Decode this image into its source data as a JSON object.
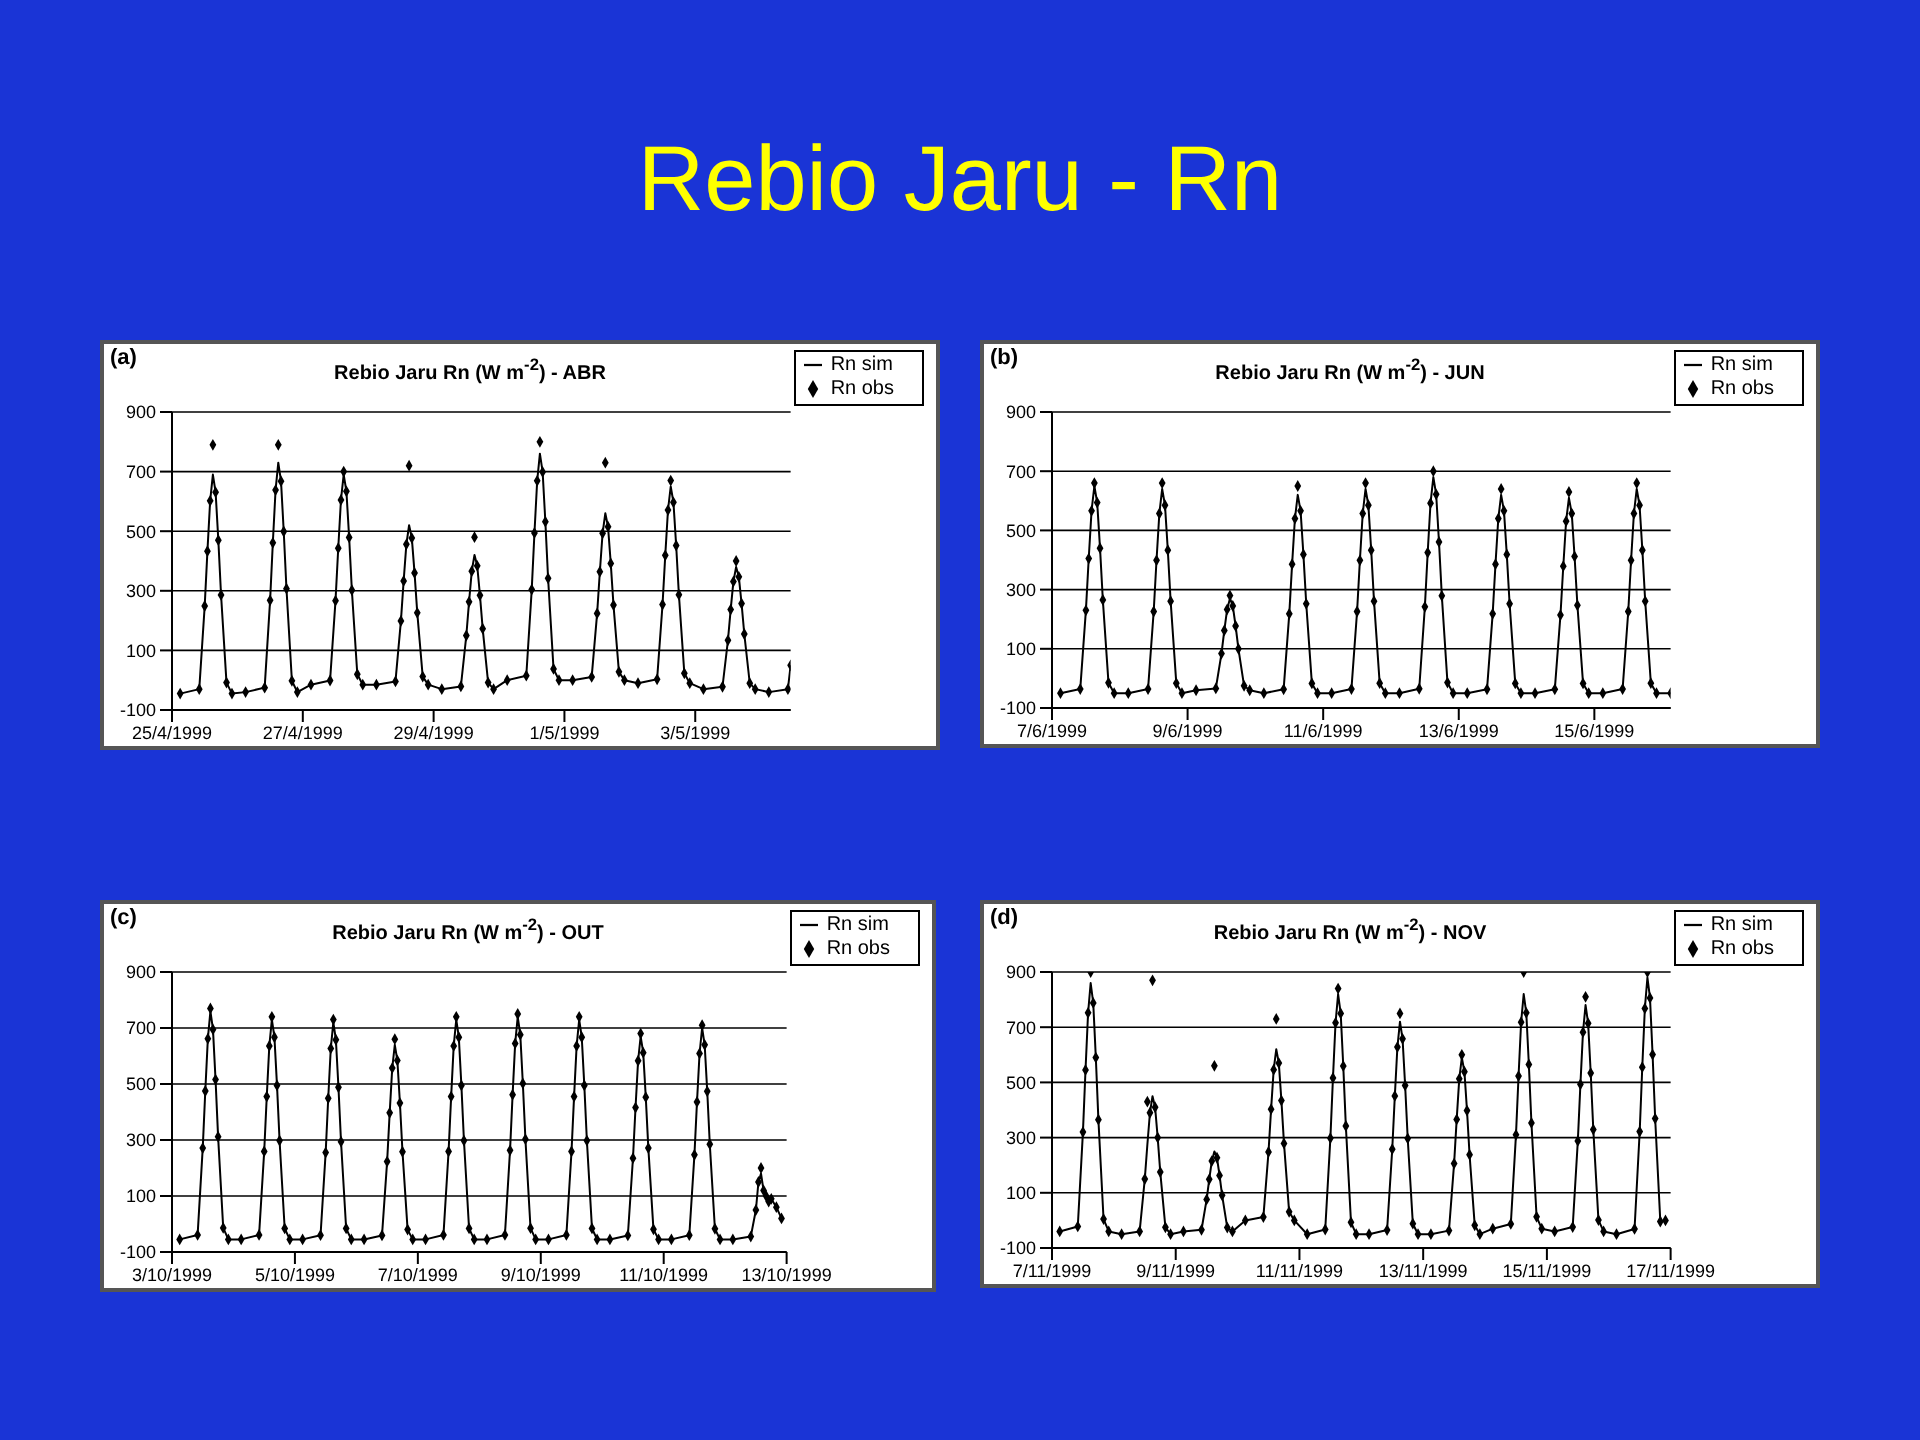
{
  "chart_data": [
    {
      "type": "other",
      "title": "Rebio Jaru - Rn"
    },
    {
      "type": "line",
      "title": "Rebio Jaru Rn (W m$^{-2}$) - ABR",
      "annotations": [
        "(a)"
      ],
      "legend": "top right",
      "grid": "y",
      "x": [
        "1999-04-25T03:00",
        "1999-04-25T10:00",
        "1999-04-25T12:00",
        "1999-04-25T13:00",
        "1999-04-25T14:00",
        "1999-04-25T15:00",
        "1999-04-25T16:00",
        "1999-04-25T17:00",
        "1999-04-25T18:00",
        "1999-04-25T20:00",
        "1999-04-25T22:00",
        "1999-04-26T03:00",
        "1999-04-26T10:00",
        "1999-04-26T12:00",
        "1999-04-26T13:00",
        "1999-04-26T14:00",
        "1999-04-26T15:00",
        "1999-04-26T16:00",
        "1999-04-26T17:00",
        "1999-04-26T18:00",
        "1999-04-26T20:00",
        "1999-04-26T22:00",
        "1999-04-27T03:00",
        "1999-04-27T10:00",
        "1999-04-27T12:00",
        "1999-04-27T13:00",
        "1999-04-27T14:00",
        "1999-04-27T15:00",
        "1999-04-27T16:00",
        "1999-04-27T17:00",
        "1999-04-27T18:00",
        "1999-04-27T20:00",
        "1999-04-27T22:00",
        "1999-04-28T03:00",
        "1999-04-28T10:00",
        "1999-04-28T12:00",
        "1999-04-28T13:00",
        "1999-04-28T14:00",
        "1999-04-28T15:00",
        "1999-04-28T16:00",
        "1999-04-28T17:00",
        "1999-04-28T18:00",
        "1999-04-28T20:00",
        "1999-04-28T22:00",
        "1999-04-29T03:00",
        "1999-04-29T10:00",
        "1999-04-29T12:00",
        "1999-04-29T13:00",
        "1999-04-29T14:00",
        "1999-04-29T15:00",
        "1999-04-29T16:00",
        "1999-04-29T17:00",
        "1999-04-29T18:00",
        "1999-04-29T20:00",
        "1999-04-29T22:00",
        "1999-04-30T03:00",
        "1999-04-30T10:00",
        "1999-04-30T12:00",
        "1999-04-30T13:00",
        "1999-04-30T14:00",
        "1999-04-30T15:00",
        "1999-04-30T16:00",
        "1999-04-30T17:00",
        "1999-04-30T18:00",
        "1999-04-30T20:00",
        "1999-04-30T22:00",
        "1999-05-01T03:00",
        "1999-05-01T10:00",
        "1999-05-01T12:00",
        "1999-05-01T13:00",
        "1999-05-01T14:00",
        "1999-05-01T15:00",
        "1999-05-01T16:00",
        "1999-05-01T17:00",
        "1999-05-01T18:00",
        "1999-05-01T20:00",
        "1999-05-01T22:00",
        "1999-05-02T03:00",
        "1999-05-02T10:00",
        "1999-05-02T12:00",
        "1999-05-02T13:00",
        "1999-05-02T14:00",
        "1999-05-02T15:00",
        "1999-05-02T16:00",
        "1999-05-02T17:00",
        "1999-05-02T18:00",
        "1999-05-02T20:00",
        "1999-05-02T22:00",
        "1999-05-03T03:00",
        "1999-05-03T10:00",
        "1999-05-03T12:00",
        "1999-05-03T13:00",
        "1999-05-03T14:00",
        "1999-05-03T15:00",
        "1999-05-03T16:00",
        "1999-05-03T17:00",
        "1999-05-03T18:00",
        "1999-05-03T20:00",
        "1999-05-03T22:00",
        "1999-05-04T03:00",
        "1999-05-04T10:00",
        "1999-05-04T11:00"
      ],
      "series": [
        {
          "name": "Rn sim",
          "type": "line",
          "color": "#000000",
          "marker": "none",
          "values": [
            -45,
            -30,
            249,
            433,
            602,
            690,
            631,
            470,
            286,
            -8,
            -45,
            -40,
            -25,
            268,
            461,
            638,
            730,
            668,
            499,
            307,
            -2,
            -40,
            -15,
            -1,
            267,
            443,
            605,
            690,
            634,
            479,
            302,
            20,
            -15,
            -15,
            -4,
            199,
            333,
            456,
            520,
            477,
            360,
            226,
            12,
            -15,
            -30,
            -21,
            150,
            263,
            366,
            420,
            384,
            285,
            173,
            -8,
            -30,
            0,
            15,
            304,
            494,
            669,
            760,
            699,
            532,
            342,
            38,
            0,
            0,
            11,
            224,
            364,
            493,
            560,
            515,
            392,
            252,
            28,
            0,
            -10,
            3,
            254,
            419,
            571,
            650,
            597,
            452,
            287,
            23,
            -10,
            -30,
            -22,
            134,
            237,
            331,
            380,
            347,
            257,
            155,
            -10,
            -30,
            -40,
            -30,
            50
          ]
        },
        {
          "name": "Rn obs",
          "type": "scatter",
          "color": "#000000",
          "marker": "diamond",
          "values": [
            -45,
            -30,
            249,
            433,
            602,
            790,
            631,
            470,
            286,
            -8,
            -45,
            -40,
            -25,
            268,
            461,
            638,
            790,
            668,
            499,
            307,
            -2,
            -40,
            -15,
            -1,
            267,
            443,
            605,
            700,
            634,
            479,
            302,
            20,
            -15,
            -15,
            -4,
            199,
            333,
            456,
            720,
            477,
            360,
            226,
            12,
            -15,
            -30,
            -21,
            150,
            263,
            366,
            480,
            384,
            285,
            173,
            -8,
            -30,
            0,
            15,
            304,
            494,
            669,
            800,
            699,
            532,
            342,
            38,
            0,
            0,
            11,
            224,
            364,
            493,
            730,
            515,
            392,
            252,
            28,
            0,
            -10,
            3,
            254,
            419,
            571,
            670,
            597,
            452,
            287,
            23,
            -10,
            -30,
            -22,
            134,
            237,
            331,
            400,
            347,
            257,
            155,
            -10,
            -30,
            -40,
            -30,
            50
          ]
        }
      ],
      "xlim": [
        "1999-04-25",
        "1999-05-04T11:00"
      ],
      "xticks": [
        {
          "value": "1999-04-25",
          "label": "25/4/1999"
        },
        {
          "value": "1999-04-27",
          "label": "27/4/1999"
        },
        {
          "value": "1999-04-29",
          "label": "29/4/1999"
        },
        {
          "value": "1999-05-01",
          "label": "1/5/1999"
        },
        {
          "value": "1999-05-03",
          "label": "3/5/1999"
        }
      ],
      "ylim": [
        -100,
        900
      ],
      "yticks": [
        -100,
        100,
        300,
        500,
        700,
        900
      ]
    },
    {
      "type": "line",
      "title": "Rebio Jaru Rn (W m$^{-2}$) - JUN",
      "annotations": [
        "(b)"
      ],
      "legend": "top right",
      "grid": "y",
      "x": [
        "1999-06-07T03:00",
        "1999-06-07T10:00",
        "1999-06-07T12:00",
        "1999-06-07T13:00",
        "1999-06-07T14:00",
        "1999-06-07T15:00",
        "1999-06-07T16:00",
        "1999-06-07T17:00",
        "1999-06-07T18:00",
        "1999-06-07T20:00",
        "1999-06-07T22:00",
        "1999-06-08T03:00",
        "1999-06-08T10:00",
        "1999-06-08T12:00",
        "1999-06-08T13:00",
        "1999-06-08T14:00",
        "1999-06-08T15:00",
        "1999-06-08T16:00",
        "1999-06-08T17:00",
        "1999-06-08T18:00",
        "1999-06-08T20:00",
        "1999-06-08T22:00",
        "1999-06-09T03:00",
        "1999-06-09T10:00",
        "1999-06-09T12:00",
        "1999-06-09T13:00",
        "1999-06-09T14:00",
        "1999-06-09T15:00",
        "1999-06-09T16:00",
        "1999-06-09T17:00",
        "1999-06-09T18:00",
        "1999-06-09T20:00",
        "1999-06-09T22:00",
        "1999-06-10T03:00",
        "1999-06-10T10:00",
        "1999-06-10T12:00",
        "1999-06-10T13:00",
        "1999-06-10T14:00",
        "1999-06-10T15:00",
        "1999-06-10T16:00",
        "1999-06-10T17:00",
        "1999-06-10T18:00",
        "1999-06-10T20:00",
        "1999-06-10T22:00",
        "1999-06-11T03:00",
        "1999-06-11T10:00",
        "1999-06-11T12:00",
        "1999-06-11T13:00",
        "1999-06-11T14:00",
        "1999-06-11T15:00",
        "1999-06-11T16:00",
        "1999-06-11T17:00",
        "1999-06-11T18:00",
        "1999-06-11T20:00",
        "1999-06-11T22:00",
        "1999-06-12T03:00",
        "1999-06-12T10:00",
        "1999-06-12T12:00",
        "1999-06-12T13:00",
        "1999-06-12T14:00",
        "1999-06-12T15:00",
        "1999-06-12T16:00",
        "1999-06-12T17:00",
        "1999-06-12T18:00",
        "1999-06-12T20:00",
        "1999-06-12T22:00",
        "1999-06-13T03:00",
        "1999-06-13T10:00",
        "1999-06-13T12:00",
        "1999-06-13T13:00",
        "1999-06-13T14:00",
        "1999-06-13T15:00",
        "1999-06-13T16:00",
        "1999-06-13T17:00",
        "1999-06-13T18:00",
        "1999-06-13T20:00",
        "1999-06-13T22:00",
        "1999-06-14T03:00",
        "1999-06-14T10:00",
        "1999-06-14T12:00",
        "1999-06-14T13:00",
        "1999-06-14T14:00",
        "1999-06-14T15:00",
        "1999-06-14T16:00",
        "1999-06-14T17:00",
        "1999-06-14T18:00",
        "1999-06-14T20:00",
        "1999-06-14T22:00",
        "1999-06-15T03:00",
        "1999-06-15T10:00",
        "1999-06-15T12:00",
        "1999-06-15T13:00",
        "1999-06-15T14:00",
        "1999-06-15T15:00",
        "1999-06-15T16:00",
        "1999-06-15T17:00",
        "1999-06-15T18:00",
        "1999-06-15T20:00",
        "1999-06-15T22:00",
        "1999-06-16T03:00"
      ],
      "series": [
        {
          "name": "Rn sim",
          "type": "line",
          "color": "#000000",
          "marker": "none",
          "values": [
            -50,
            -36,
            230,
            405,
            566,
            650,
            594,
            440,
            265,
            -15,
            -50,
            -50,
            -36,
            226,
            399,
            557,
            640,
            585,
            433,
            261,
            -16,
            -50,
            -40,
            -34,
            84,
            162,
            233,
            270,
            245,
            177,
            100,
            -25,
            -40,
            -50,
            -37,
            218,
            386,
            540,
            620,
            566,
            419,
            252,
            -17,
            -50,
            -50,
            -36,
            226,
            399,
            557,
            640,
            585,
            433,
            261,
            -16,
            -50,
            -50,
            -35,
            242,
            425,
            592,
            680,
            622,
            461,
            279,
            -14,
            -50,
            -50,
            -37,
            218,
            386,
            540,
            620,
            566,
            419,
            252,
            -17,
            -50,
            -50,
            -37,
            214,
            379,
            531,
            610,
            557,
            412,
            247,
            -17,
            -50,
            -50,
            -36,
            226,
            399,
            557,
            640,
            585,
            433,
            261,
            -16,
            -50,
            -50
          ]
        },
        {
          "name": "Rn obs",
          "type": "scatter",
          "color": "#000000",
          "marker": "diamond",
          "values": [
            -50,
            -36,
            230,
            405,
            566,
            660,
            594,
            440,
            265,
            -15,
            -50,
            -50,
            -36,
            226,
            399,
            557,
            660,
            585,
            433,
            261,
            -16,
            -50,
            -40,
            -34,
            84,
            162,
            233,
            280,
            245,
            177,
            100,
            -25,
            -40,
            -50,
            -37,
            218,
            386,
            540,
            650,
            566,
            419,
            252,
            -17,
            -50,
            -50,
            -36,
            226,
            399,
            557,
            660,
            585,
            433,
            261,
            -16,
            -50,
            -50,
            -35,
            242,
            425,
            592,
            700,
            622,
            461,
            279,
            -14,
            -50,
            -50,
            -37,
            218,
            386,
            540,
            640,
            566,
            419,
            252,
            -17,
            -50,
            -50,
            -37,
            214,
            379,
            531,
            630,
            557,
            412,
            247,
            -17,
            -50,
            -50,
            -36,
            226,
            399,
            557,
            660,
            585,
            433,
            261,
            -16,
            -50,
            -50
          ]
        }
      ],
      "xlim": [
        "1999-06-07",
        "1999-06-16T03:00"
      ],
      "xticks": [
        {
          "value": "1999-06-07",
          "label": "7/6/1999"
        },
        {
          "value": "1999-06-09",
          "label": "9/6/1999"
        },
        {
          "value": "1999-06-11",
          "label": "11/6/1999"
        },
        {
          "value": "1999-06-13",
          "label": "13/6/1999"
        },
        {
          "value": "1999-06-15",
          "label": "15/6/1999"
        }
      ],
      "ylim": [
        -100,
        900
      ],
      "yticks": [
        -100,
        100,
        300,
        500,
        700,
        900
      ]
    },
    {
      "type": "line",
      "title": "Rebio Jaru Rn (W m$^{-2}$) - OUT",
      "annotations": [
        "(c)"
      ],
      "legend": "top right",
      "grid": "y",
      "x": [
        "1999-10-03T03:00",
        "1999-10-03T10:00",
        "1999-10-03T12:00",
        "1999-10-03T13:00",
        "1999-10-03T14:00",
        "1999-10-03T15:00",
        "1999-10-03T16:00",
        "1999-10-03T17:00",
        "1999-10-03T18:00",
        "1999-10-03T20:00",
        "1999-10-03T22:00",
        "1999-10-04T03:00",
        "1999-10-04T10:00",
        "1999-10-04T12:00",
        "1999-10-04T13:00",
        "1999-10-04T14:00",
        "1999-10-04T15:00",
        "1999-10-04T16:00",
        "1999-10-04T17:00",
        "1999-10-04T18:00",
        "1999-10-04T20:00",
        "1999-10-04T22:00",
        "1999-10-05T03:00",
        "1999-10-05T10:00",
        "1999-10-05T12:00",
        "1999-10-05T13:00",
        "1999-10-05T14:00",
        "1999-10-05T15:00",
        "1999-10-05T16:00",
        "1999-10-05T17:00",
        "1999-10-05T18:00",
        "1999-10-05T20:00",
        "1999-10-05T22:00",
        "1999-10-06T03:00",
        "1999-10-06T10:00",
        "1999-10-06T12:00",
        "1999-10-06T13:00",
        "1999-10-06T14:00",
        "1999-10-06T15:00",
        "1999-10-06T16:00",
        "1999-10-06T17:00",
        "1999-10-06T18:00",
        "1999-10-06T20:00",
        "1999-10-06T22:00",
        "1999-10-07T03:00",
        "1999-10-07T10:00",
        "1999-10-07T12:00",
        "1999-10-07T13:00",
        "1999-10-07T14:00",
        "1999-10-07T15:00",
        "1999-10-07T16:00",
        "1999-10-07T17:00",
        "1999-10-07T18:00",
        "1999-10-07T20:00",
        "1999-10-07T22:00",
        "1999-10-08T03:00",
        "1999-10-08T10:00",
        "1999-10-08T12:00",
        "1999-10-08T13:00",
        "1999-10-08T14:00",
        "1999-10-08T15:00",
        "1999-10-08T16:00",
        "1999-10-08T17:00",
        "1999-10-08T18:00",
        "1999-10-08T20:00",
        "1999-10-08T22:00",
        "1999-10-09T03:00",
        "1999-10-09T10:00",
        "1999-10-09T12:00",
        "1999-10-09T13:00",
        "1999-10-09T14:00",
        "1999-10-09T15:00",
        "1999-10-09T16:00",
        "1999-10-09T17:00",
        "1999-10-09T18:00",
        "1999-10-09T20:00",
        "1999-10-09T22:00",
        "1999-10-10T03:00",
        "1999-10-10T10:00",
        "1999-10-10T12:00",
        "1999-10-10T13:00",
        "1999-10-10T14:00",
        "1999-10-10T15:00",
        "1999-10-10T16:00",
        "1999-10-10T17:00",
        "1999-10-10T18:00",
        "1999-10-10T20:00",
        "1999-10-10T22:00",
        "1999-10-11T03:00",
        "1999-10-11T10:00",
        "1999-10-11T12:00",
        "1999-10-11T13:00",
        "1999-10-11T14:00",
        "1999-10-11T15:00",
        "1999-10-11T16:00",
        "1999-10-11T17:00",
        "1999-10-11T18:00",
        "1999-10-11T20:00",
        "1999-10-11T22:00",
        "1999-10-12T03:00",
        "1999-10-12T10:00",
        "1999-10-12T12:00",
        "1999-10-12T13:00",
        "1999-10-12T14:00",
        "1999-10-12T15:00",
        "1999-10-12T16:00",
        "1999-10-12T17:00",
        "1999-10-12T18:00",
        "1999-10-12T20:00",
        "1999-10-12T22:00"
      ],
      "series": [
        {
          "name": "Rn sim",
          "type": "line",
          "color": "#000000",
          "marker": "none",
          "values": [
            -55,
            -39,
            271,
            475,
            662,
            760,
            695,
            516,
            312,
            -14,
            -55,
            -55,
            -39,
            259,
            455,
            636,
            730,
            667,
            495,
            298,
            -16,
            -55,
            -55,
            -40,
            255,
            449,
            627,
            720,
            658,
            488,
            294,
            -16,
            -55,
            -55,
            -41,
            223,
            397,
            557,
            640,
            584,
            432,
            258,
            -20,
            -55,
            -55,
            -39,
            259,
            455,
            636,
            730,
            667,
            495,
            298,
            -16,
            -55,
            -55,
            -39,
            263,
            462,
            645,
            740,
            676,
            502,
            303,
            -15,
            -55,
            -55,
            -39,
            259,
            455,
            636,
            730,
            667,
            495,
            298,
            -16,
            -55,
            -55,
            -41,
            235,
            416,
            583,
            670,
            612,
            453,
            271,
            -19,
            -55,
            -55,
            -40,
            247,
            436,
            609,
            700,
            640,
            474,
            285,
            -17,
            -55,
            -55,
            -45,
            50,
            150,
            180,
            120,
            100,
            80,
            90,
            60,
            20
          ]
        },
        {
          "name": "Rn obs",
          "type": "scatter",
          "color": "#000000",
          "marker": "diamond",
          "values": [
            -55,
            -39,
            271,
            475,
            662,
            770,
            695,
            516,
            312,
            -14,
            -55,
            -55,
            -39,
            259,
            455,
            636,
            740,
            667,
            495,
            298,
            -16,
            -55,
            -55,
            -40,
            255,
            449,
            627,
            730,
            658,
            488,
            294,
            -16,
            -55,
            -55,
            -41,
            223,
            397,
            557,
            660,
            584,
            432,
            258,
            -20,
            -55,
            -55,
            -39,
            259,
            455,
            636,
            740,
            667,
            495,
            298,
            -16,
            -55,
            -55,
            -39,
            263,
            462,
            645,
            750,
            676,
            502,
            303,
            -15,
            -55,
            -55,
            -39,
            259,
            455,
            636,
            740,
            667,
            495,
            298,
            -16,
            -55,
            -55,
            -41,
            235,
            416,
            583,
            680,
            612,
            453,
            271,
            -19,
            -55,
            -55,
            -40,
            247,
            436,
            609,
            710,
            640,
            474,
            285,
            -17,
            -55,
            -55,
            -45,
            50,
            150,
            200,
            120,
            100,
            80,
            90,
            60,
            20
          ]
        }
      ],
      "xlim": [
        "1999-10-03",
        "1999-10-13"
      ],
      "xticks": [
        {
          "value": "1999-10-03",
          "label": "3/10/1999"
        },
        {
          "value": "1999-10-05",
          "label": "5/10/1999"
        },
        {
          "value": "1999-10-07",
          "label": "7/10/1999"
        },
        {
          "value": "1999-10-09",
          "label": "9/10/1999"
        },
        {
          "value": "1999-10-11",
          "label": "11/10/1999"
        },
        {
          "value": "1999-10-13",
          "label": "13/10/1999"
        }
      ],
      "ylim": [
        -100,
        900
      ],
      "yticks": [
        -100,
        100,
        300,
        500,
        700,
        900
      ]
    },
    {
      "type": "line",
      "title": "Rebio Jaru Rn (W m$^{-2}$) - NOV",
      "annotations": [
        "(d)"
      ],
      "legend": "top right",
      "grid": "y",
      "x": [
        "1999-11-07T03:00",
        "1999-11-07T10:00",
        "1999-11-07T12:00",
        "1999-11-07T13:00",
        "1999-11-07T14:00",
        "1999-11-07T15:00",
        "1999-11-07T16:00",
        "1999-11-07T17:00",
        "1999-11-07T18:00",
        "1999-11-07T20:00",
        "1999-11-07T22:00",
        "1999-11-08T03:00",
        "1999-11-08T10:00",
        "1999-11-08T12:00",
        "1999-11-08T13:00",
        "1999-11-08T14:00",
        "1999-11-08T15:00",
        "1999-11-08T16:00",
        "1999-11-08T17:00",
        "1999-11-08T18:00",
        "1999-11-08T20:00",
        "1999-11-08T22:00",
        "1999-11-09T03:00",
        "1999-11-09T10:00",
        "1999-11-09T12:00",
        "1999-11-09T13:00",
        "1999-11-09T14:00",
        "1999-11-09T15:00",
        "1999-11-09T16:00",
        "1999-11-09T17:00",
        "1999-11-09T18:00",
        "1999-11-09T20:00",
        "1999-11-09T22:00",
        "1999-11-10T03:00",
        "1999-11-10T10:00",
        "1999-11-10T12:00",
        "1999-11-10T13:00",
        "1999-11-10T14:00",
        "1999-11-10T15:00",
        "1999-11-10T16:00",
        "1999-11-10T17:00",
        "1999-11-10T18:00",
        "1999-11-10T20:00",
        "1999-11-10T22:00",
        "1999-11-11T03:00",
        "1999-11-11T10:00",
        "1999-11-11T12:00",
        "1999-11-11T13:00",
        "1999-11-11T14:00",
        "1999-11-11T15:00",
        "1999-11-11T16:00",
        "1999-11-11T17:00",
        "1999-11-11T18:00",
        "1999-11-11T20:00",
        "1999-11-11T22:00",
        "1999-11-12T03:00",
        "1999-11-12T10:00",
        "1999-11-12T12:00",
        "1999-11-12T13:00",
        "1999-11-12T14:00",
        "1999-11-12T15:00",
        "1999-11-12T16:00",
        "1999-11-12T17:00",
        "1999-11-12T18:00",
        "1999-11-12T20:00",
        "1999-11-12T22:00",
        "1999-11-13T03:00",
        "1999-11-13T10:00",
        "1999-11-13T12:00",
        "1999-11-13T13:00",
        "1999-11-13T14:00",
        "1999-11-13T15:00",
        "1999-11-13T16:00",
        "1999-11-13T17:00",
        "1999-11-13T18:00",
        "1999-11-13T20:00",
        "1999-11-13T22:00",
        "1999-11-14T03:00",
        "1999-11-14T10:00",
        "1999-11-14T12:00",
        "1999-11-14T13:00",
        "1999-11-14T14:00",
        "1999-11-14T15:00",
        "1999-11-14T16:00",
        "1999-11-14T17:00",
        "1999-11-14T18:00",
        "1999-11-14T20:00",
        "1999-11-14T22:00",
        "1999-11-15T03:00",
        "1999-11-15T10:00",
        "1999-11-15T12:00",
        "1999-11-15T13:00",
        "1999-11-15T14:00",
        "1999-11-15T15:00",
        "1999-11-15T16:00",
        "1999-11-15T17:00",
        "1999-11-15T18:00",
        "1999-11-15T20:00",
        "1999-11-15T22:00",
        "1999-11-16T03:00",
        "1999-11-16T10:00",
        "1999-11-16T12:00",
        "1999-11-16T13:00",
        "1999-11-16T14:00",
        "1999-11-16T15:00",
        "1999-11-16T16:00",
        "1999-11-16T17:00",
        "1999-11-16T18:00",
        "1999-11-16T20:00",
        "1999-11-16T22:00"
      ],
      "series": [
        {
          "name": "Rn sim",
          "type": "line",
          "color": "#000000",
          "marker": "none",
          "values": [
            -40,
            -22,
            320,
            545,
            752,
            860,
            788,
            590,
            365,
            5,
            -40,
            -50,
            -40,
            150,
            275,
            390,
            450,
            410,
            300,
            175,
            -25,
            -50,
            -40,
            -34,
            76,
            149,
            215,
            250,
            227,
            163,
            91,
            -26,
            -40,
            0,
            12,
            248,
            403,
            546,
            620,
            570,
            434,
            279,
            31,
            0,
            -50,
            -33,
            298,
            516,
            716,
            820,
            750,
            559,
            342,
            -7,
            -50,
            -50,
            -35,
            258,
            451,
            628,
            720,
            658,
            489,
            297,
            -12,
            -50,
            -50,
            -37,
            206,
            366,
            513,
            590,
            539,
            398,
            238,
            -18,
            -50,
            -30,
            -13,
            310,
            523,
            718,
            820,
            752,
            565,
            353,
            13,
            -30,
            -40,
            -24,
            288,
            493,
            682,
            780,
            714,
            534,
            329,
            1,
            -40,
            -50,
            -31,
            322,
            555,
            768,
            880,
            806,
            601,
            369,
            -4,
            0
          ]
        },
        {
          "name": "Rn obs",
          "type": "scatter",
          "color": "#000000",
          "marker": "diamond",
          "values": [
            -40,
            -22,
            320,
            545,
            752,
            900,
            788,
            590,
            365,
            5,
            -40,
            -50,
            -40,
            150,
            430,
            390,
            870,
            410,
            300,
            175,
            -25,
            -50,
            -40,
            -34,
            76,
            149,
            215,
            560,
            227,
            163,
            91,
            -26,
            -40,
            0,
            12,
            248,
            403,
            546,
            730,
            570,
            434,
            279,
            31,
            0,
            -50,
            -33,
            298,
            516,
            716,
            840,
            750,
            559,
            342,
            -7,
            -50,
            -50,
            -35,
            258,
            451,
            628,
            750,
            658,
            489,
            297,
            -12,
            -50,
            -50,
            -37,
            206,
            366,
            513,
            600,
            539,
            398,
            238,
            -18,
            -50,
            -30,
            -13,
            310,
            523,
            718,
            900,
            752,
            565,
            353,
            13,
            -30,
            -40,
            -24,
            288,
            493,
            682,
            810,
            714,
            534,
            329,
            1,
            -40,
            -50,
            -31,
            322,
            555,
            768,
            900,
            806,
            601,
            369,
            -4,
            0
          ]
        }
      ],
      "xlim": [
        "1999-11-07",
        "1999-11-17"
      ],
      "xticks": [
        {
          "value": "1999-11-07",
          "label": "7/11/1999"
        },
        {
          "value": "1999-11-09",
          "label": "9/11/1999"
        },
        {
          "value": "1999-11-11",
          "label": "11/11/1999"
        },
        {
          "value": "1999-11-13",
          "label": "13/11/1999"
        },
        {
          "value": "1999-11-15",
          "label": "15/11/1999"
        },
        {
          "value": "1999-11-17",
          "label": "17/11/1999"
        }
      ],
      "ylim": [
        -100,
        900
      ],
      "yticks": [
        -100,
        100,
        300,
        500,
        700,
        900
      ]
    }
  ]
}
